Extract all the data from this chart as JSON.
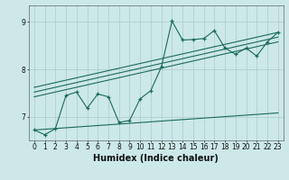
{
  "title": "",
  "xlabel": "Humidex (Indice chaleur)",
  "bg_color": "#cce8e8",
  "grid_color": "#b0d0d0",
  "line_color": "#1a6b5a",
  "xlim": [
    -0.5,
    23.5
  ],
  "ylim": [
    6.5,
    9.35
  ],
  "xticks": [
    0,
    1,
    2,
    3,
    4,
    5,
    6,
    7,
    8,
    9,
    10,
    11,
    12,
    13,
    14,
    15,
    16,
    17,
    18,
    19,
    20,
    21,
    22,
    23
  ],
  "yticks": [
    7,
    8,
    9
  ],
  "data_x": [
    0,
    1,
    2,
    3,
    4,
    5,
    6,
    7,
    8,
    9,
    10,
    11,
    12,
    13,
    14,
    15,
    16,
    17,
    18,
    19,
    20,
    21,
    22,
    23
  ],
  "data_y": [
    6.72,
    6.62,
    6.75,
    7.45,
    7.52,
    7.18,
    7.48,
    7.42,
    6.88,
    6.92,
    7.38,
    7.55,
    8.05,
    9.02,
    8.62,
    8.63,
    8.65,
    8.82,
    8.45,
    8.32,
    8.45,
    8.28,
    8.58,
    8.78
  ],
  "trend_lines": [
    {
      "x0": 0,
      "y0": 7.62,
      "x1": 23,
      "y1": 8.78
    },
    {
      "x0": 0,
      "y0": 7.52,
      "x1": 23,
      "y1": 8.68
    },
    {
      "x0": 0,
      "y0": 7.42,
      "x1": 23,
      "y1": 8.58
    },
    {
      "x0": 0,
      "y0": 6.72,
      "x1": 23,
      "y1": 7.08
    }
  ],
  "xlabel_fontsize": 7,
  "tick_fontsize": 5.5
}
